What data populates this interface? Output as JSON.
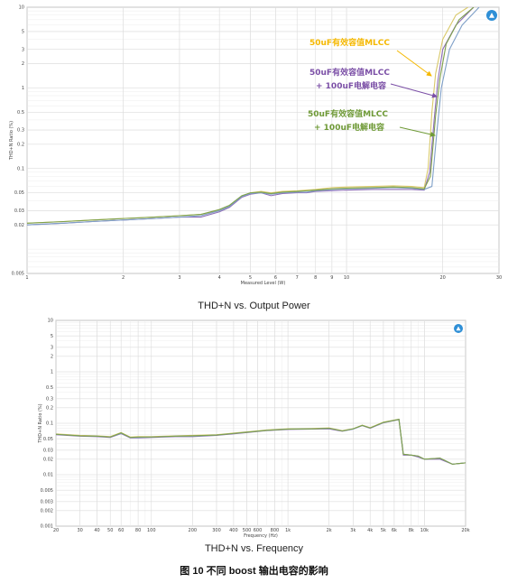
{
  "chart_data": [
    {
      "type": "line",
      "title": "THD+N vs. Output Power",
      "xlabel": "Measured Level (W)",
      "ylabel": "THD+N Ratio (%)",
      "x_scale": "log",
      "y_scale": "log",
      "xlim": [
        1,
        30
      ],
      "ylim": [
        0.005,
        10
      ],
      "x_ticks": [
        "1",
        "2",
        "3",
        "4",
        "5",
        "6",
        "7",
        "8",
        "9",
        "10",
        "20",
        "30"
      ],
      "x_tick_values": [
        1,
        2,
        3,
        4,
        5,
        6,
        7,
        8,
        9,
        10,
        20,
        30
      ],
      "y_ticks": [
        "10",
        "5",
        "3",
        "2",
        "1",
        "0.5",
        "0.3",
        "0.2",
        "0.1",
        "0.05",
        "0.03",
        "0.02",
        "0.005"
      ],
      "y_tick_values": [
        10,
        5,
        3,
        2,
        1,
        0.5,
        0.3,
        0.2,
        0.1,
        0.05,
        0.03,
        0.02,
        0.005
      ],
      "grid": true,
      "annotations": [
        {
          "text": "50uF有效容值MLCC",
          "color": "#f5b800"
        },
        {
          "text": "50uF有效容值MLCC",
          "text2": "+ 100uF电解电容",
          "color": "#7b4fa6"
        },
        {
          "text": "50uF有效容值MLCC",
          "text2": "+ 100uF电解电容",
          "color": "#6f9a37"
        }
      ],
      "series": [
        {
          "color": "#d9c96a",
          "x": [
            1,
            1.3,
            1.6,
            2,
            2.5,
            3,
            3.5,
            4,
            4.3,
            4.7,
            5,
            5.4,
            5.8,
            6.3,
            7,
            7.5,
            8,
            9,
            10,
            12,
            14,
            16,
            17.5,
            18,
            18.5,
            19,
            20,
            22,
            24
          ],
          "y": [
            0.021,
            0.022,
            0.023,
            0.024,
            0.025,
            0.026,
            0.027,
            0.03,
            0.034,
            0.045,
            0.05,
            0.052,
            0.05,
            0.052,
            0.053,
            0.054,
            0.055,
            0.058,
            0.059,
            0.06,
            0.061,
            0.06,
            0.058,
            0.1,
            0.5,
            1.5,
            4,
            8,
            10
          ]
        },
        {
          "color": "#8e6fb8",
          "x": [
            1,
            1.3,
            1.6,
            2,
            2.5,
            3,
            3.5,
            4,
            4.3,
            4.7,
            5,
            5.4,
            5.8,
            6.3,
            7,
            7.5,
            8,
            9,
            10,
            12,
            14,
            16,
            17.5,
            18.2,
            18.8,
            19.3,
            20,
            22,
            25
          ],
          "y": [
            0.02,
            0.021,
            0.022,
            0.023,
            0.024,
            0.025,
            0.025,
            0.029,
            0.033,
            0.044,
            0.048,
            0.05,
            0.046,
            0.049,
            0.05,
            0.05,
            0.052,
            0.053,
            0.054,
            0.055,
            0.055,
            0.055,
            0.054,
            0.09,
            0.4,
            1.2,
            3,
            6,
            10
          ]
        },
        {
          "color": "#7fa0c8",
          "x": [
            1,
            1.3,
            1.6,
            2,
            2.5,
            3,
            3.5,
            4,
            4.3,
            4.7,
            5,
            5.4,
            5.8,
            6.3,
            7,
            7.5,
            8,
            9,
            10,
            12,
            14,
            16,
            17.5,
            18.5,
            19.2,
            19.8,
            21,
            23,
            26
          ],
          "y": [
            0.02,
            0.021,
            0.022,
            0.023,
            0.024,
            0.025,
            0.026,
            0.03,
            0.034,
            0.045,
            0.049,
            0.05,
            0.048,
            0.05,
            0.051,
            0.051,
            0.053,
            0.055,
            0.056,
            0.057,
            0.058,
            0.057,
            0.055,
            0.06,
            0.3,
            1,
            3,
            6,
            10
          ]
        },
        {
          "color": "#7ea14a",
          "x": [
            1,
            1.3,
            1.6,
            2,
            2.5,
            3,
            3.5,
            4,
            4.3,
            4.7,
            5,
            5.4,
            5.8,
            6.3,
            7,
            7.5,
            8,
            9,
            10,
            12,
            14,
            16,
            17.5,
            18.3,
            19,
            19.6,
            20.5,
            22.5,
            25
          ],
          "y": [
            0.021,
            0.022,
            0.023,
            0.024,
            0.025,
            0.026,
            0.027,
            0.031,
            0.035,
            0.046,
            0.05,
            0.051,
            0.049,
            0.051,
            0.052,
            0.053,
            0.054,
            0.056,
            0.057,
            0.058,
            0.059,
            0.058,
            0.056,
            0.08,
            0.45,
            1.3,
            3.5,
            7,
            10
          ]
        }
      ]
    },
    {
      "type": "line",
      "title": "THD+N vs. Frequency",
      "xlabel": "Frequency (Hz)",
      "ylabel": "THD+N Ratio (%)",
      "x_scale": "log",
      "y_scale": "log",
      "xlim": [
        20,
        20000
      ],
      "ylim": [
        0.001,
        10
      ],
      "x_ticks": [
        "20",
        "30",
        "40",
        "50",
        "60",
        "80",
        "100",
        "200",
        "300",
        "400",
        "500",
        "600",
        "800",
        "1k",
        "2k",
        "3k",
        "4k",
        "5k",
        "6k",
        "8k",
        "10k",
        "20k"
      ],
      "x_tick_values": [
        20,
        30,
        40,
        50,
        60,
        80,
        100,
        200,
        300,
        400,
        500,
        600,
        800,
        1000,
        2000,
        3000,
        4000,
        5000,
        6000,
        8000,
        10000,
        20000
      ],
      "y_ticks": [
        "10",
        "5",
        "3",
        "2",
        "1",
        "0.5",
        "0.3",
        "0.2",
        "0.1",
        "0.05",
        "0.03",
        "0.02",
        "0.01",
        "0.005",
        "0.003",
        "0.002",
        "0.001"
      ],
      "y_tick_values": [
        10,
        5,
        3,
        2,
        1,
        0.5,
        0.3,
        0.2,
        0.1,
        0.05,
        0.03,
        0.02,
        0.01,
        0.005,
        0.003,
        0.002,
        0.001
      ],
      "grid": true,
      "series": [
        {
          "color": "#d9c96a",
          "x": [
            20,
            30,
            40,
            50,
            60,
            70,
            80,
            100,
            150,
            200,
            300,
            500,
            700,
            1000,
            1500,
            2000,
            2500,
            3000,
            3500,
            4000,
            5000,
            6500,
            7000,
            8000,
            9000,
            10000,
            13000,
            16000,
            20000
          ],
          "y": [
            0.062,
            0.058,
            0.057,
            0.055,
            0.066,
            0.054,
            0.055,
            0.055,
            0.057,
            0.058,
            0.06,
            0.068,
            0.074,
            0.078,
            0.079,
            0.081,
            0.072,
            0.078,
            0.092,
            0.082,
            0.105,
            0.12,
            0.025,
            0.024,
            0.023,
            0.02,
            0.021,
            0.016,
            0.017
          ]
        },
        {
          "color": "#8e6fb8",
          "x": [
            20,
            30,
            40,
            50,
            60,
            70,
            80,
            100,
            150,
            200,
            300,
            500,
            700,
            1000,
            1500,
            2000,
            2500,
            3000,
            3500,
            4000,
            5000,
            6500,
            7000,
            8000,
            9000,
            10000,
            13000,
            16000,
            20000
          ],
          "y": [
            0.06,
            0.056,
            0.055,
            0.053,
            0.063,
            0.052,
            0.052,
            0.053,
            0.055,
            0.055,
            0.058,
            0.066,
            0.072,
            0.076,
            0.077,
            0.078,
            0.07,
            0.077,
            0.09,
            0.08,
            0.102,
            0.118,
            0.024,
            0.024,
            0.022,
            0.02,
            0.02,
            0.016,
            0.017
          ]
        },
        {
          "color": "#7fa0c8",
          "x": [
            20,
            30,
            40,
            50,
            60,
            70,
            80,
            100,
            150,
            200,
            300,
            500,
            700,
            1000,
            1500,
            2000,
            2500,
            3000,
            3500,
            4000,
            5000,
            6500,
            7000,
            8000,
            9000,
            10000,
            13000,
            16000,
            20000
          ],
          "y": [
            0.061,
            0.057,
            0.056,
            0.054,
            0.064,
            0.053,
            0.053,
            0.054,
            0.056,
            0.056,
            0.059,
            0.067,
            0.073,
            0.077,
            0.078,
            0.08,
            0.071,
            0.077,
            0.091,
            0.081,
            0.103,
            0.119,
            0.025,
            0.024,
            0.023,
            0.02,
            0.021,
            0.016,
            0.017
          ]
        },
        {
          "color": "#7ea14a",
          "x": [
            20,
            30,
            40,
            50,
            60,
            70,
            80,
            100,
            150,
            200,
            300,
            500,
            700,
            1000,
            1500,
            2000,
            2500,
            3000,
            3500,
            4000,
            5000,
            6500,
            7000,
            8000,
            9000,
            10000,
            13000,
            16000,
            20000
          ],
          "y": [
            0.061,
            0.057,
            0.056,
            0.054,
            0.065,
            0.053,
            0.054,
            0.054,
            0.056,
            0.057,
            0.059,
            0.067,
            0.073,
            0.077,
            0.078,
            0.08,
            0.071,
            0.078,
            0.091,
            0.081,
            0.104,
            0.119,
            0.025,
            0.024,
            0.023,
            0.02,
            0.021,
            0.016,
            0.017
          ]
        }
      ]
    }
  ],
  "captions": {
    "chart1": "THD+N vs. Output Power",
    "chart2": "THD+N vs. Frequency",
    "figure": "图 10  不同 boost 输出电容的影响"
  }
}
